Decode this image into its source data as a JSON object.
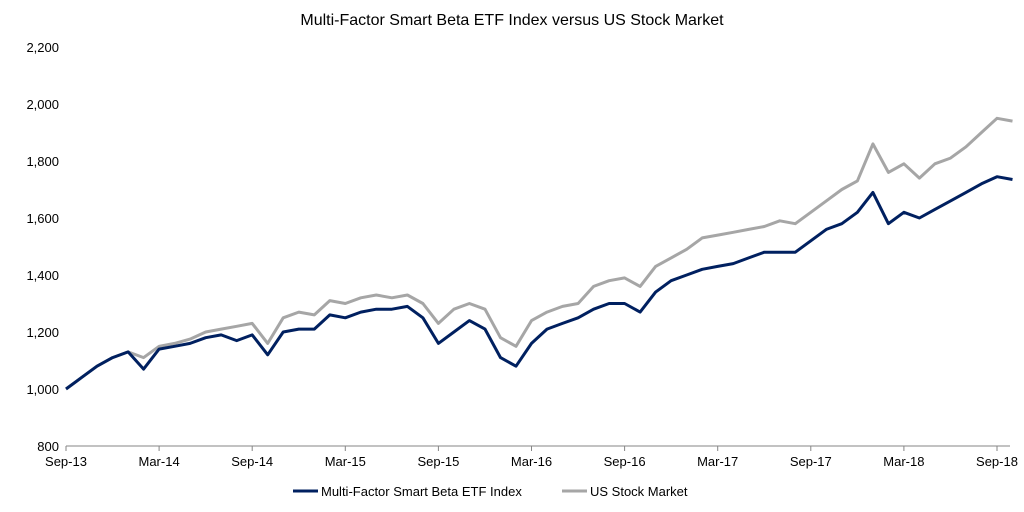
{
  "chart_data": {
    "type": "line",
    "title": "Multi-Factor Smart Beta ETF Index versus US Stock Market",
    "xlabel": "",
    "ylabel": "",
    "ylim": [
      800,
      2200
    ],
    "yticks": [
      800,
      1000,
      1200,
      1400,
      1600,
      1800,
      2000,
      2200
    ],
    "ytick_labels": [
      "800",
      "1,000",
      "1,200",
      "1,400",
      "1,600",
      "1,800",
      "2,000",
      "2,200"
    ],
    "xticks": [
      "2013-09",
      "2014-03",
      "2014-09",
      "2015-03",
      "2015-09",
      "2016-03",
      "2016-09",
      "2017-03",
      "2017-09",
      "2018-03",
      "2018-09"
    ],
    "xtick_labels": [
      "Sep-13",
      "Mar-14",
      "Sep-14",
      "Mar-15",
      "Sep-15",
      "Mar-16",
      "Sep-16",
      "Mar-17",
      "Sep-17",
      "Mar-18",
      "Sep-18"
    ],
    "xlim": [
      "2013-09",
      "2018-10"
    ],
    "grid": false,
    "legend_position": "bottom",
    "x": [
      "2013-09",
      "2013-10",
      "2013-11",
      "2013-12",
      "2014-01",
      "2014-02",
      "2014-03",
      "2014-04",
      "2014-05",
      "2014-06",
      "2014-07",
      "2014-08",
      "2014-09",
      "2014-10",
      "2014-11",
      "2014-12",
      "2015-01",
      "2015-02",
      "2015-03",
      "2015-04",
      "2015-05",
      "2015-06",
      "2015-07",
      "2015-08",
      "2015-09",
      "2015-10",
      "2015-11",
      "2015-12",
      "2016-01",
      "2016-02",
      "2016-03",
      "2016-04",
      "2016-05",
      "2016-06",
      "2016-07",
      "2016-08",
      "2016-09",
      "2016-10",
      "2016-11",
      "2016-12",
      "2017-01",
      "2017-02",
      "2017-03",
      "2017-04",
      "2017-05",
      "2017-06",
      "2017-07",
      "2017-08",
      "2017-09",
      "2017-10",
      "2017-11",
      "2017-12",
      "2018-01",
      "2018-02",
      "2018-03",
      "2018-04",
      "2018-05",
      "2018-06",
      "2018-07",
      "2018-08",
      "2018-09",
      "2018-10"
    ],
    "series": [
      {
        "name": "Multi-Factor Smart Beta ETF Index",
        "color": "#002060",
        "values": [
          1000,
          1040,
          1080,
          1110,
          1130,
          1070,
          1140,
          1150,
          1160,
          1180,
          1190,
          1170,
          1190,
          1120,
          1200,
          1210,
          1210,
          1260,
          1250,
          1270,
          1280,
          1280,
          1290,
          1250,
          1160,
          1200,
          1240,
          1210,
          1110,
          1080,
          1160,
          1210,
          1230,
          1250,
          1280,
          1300,
          1300,
          1270,
          1340,
          1380,
          1400,
          1420,
          1430,
          1440,
          1460,
          1480,
          1480,
          1480,
          1520,
          1560,
          1580,
          1620,
          1690,
          1580,
          1620,
          1600,
          1630,
          1660,
          1690,
          1720,
          1745,
          1735
        ]
      },
      {
        "name": "US Stock Market",
        "color": "#A6A6A6",
        "values": [
          1000,
          1040,
          1080,
          1110,
          1130,
          1110,
          1150,
          1160,
          1175,
          1200,
          1210,
          1220,
          1230,
          1160,
          1250,
          1270,
          1260,
          1310,
          1300,
          1320,
          1330,
          1320,
          1330,
          1300,
          1230,
          1280,
          1300,
          1280,
          1180,
          1150,
          1240,
          1270,
          1290,
          1300,
          1360,
          1380,
          1390,
          1360,
          1430,
          1460,
          1490,
          1530,
          1540,
          1550,
          1560,
          1570,
          1590,
          1580,
          1620,
          1660,
          1700,
          1730,
          1860,
          1760,
          1790,
          1740,
          1790,
          1810,
          1850,
          1900,
          1950,
          1940
        ]
      }
    ]
  }
}
